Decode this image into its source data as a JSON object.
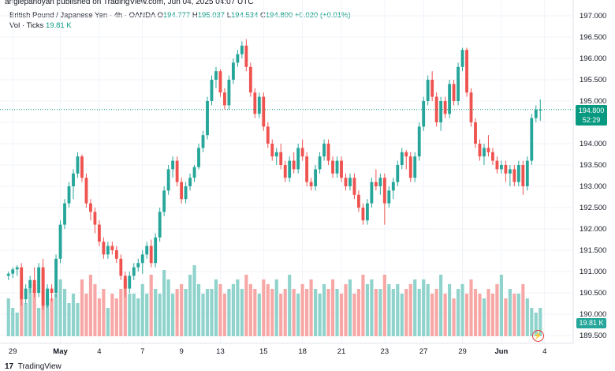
{
  "header": {
    "published": "angiepanoyan published on TradingView.com, Jun 04, 2025 04:07 UTC"
  },
  "legend": {
    "symbol": "British Pound / Japanese Yen · 4h · OANDA",
    "o_label": "O",
    "o_val": "194.777",
    "h_label": "H",
    "h_val": "195.037",
    "l_label": "L",
    "l_val": "194.534",
    "c_label": "C",
    "c_val": "194.800",
    "change": "+0.020 (+0.01%)",
    "vol_label": "Vol · Ticks",
    "vol_val": "19.81 K"
  },
  "price_tag": {
    "price": "194.800",
    "countdown": "52:29"
  },
  "vol_tag": "19.81 K",
  "footer": {
    "brand": "TradingView"
  },
  "colors": {
    "up": "#26a69a",
    "down": "#ef5350",
    "vol_up": "#8fd3cc",
    "vol_down": "#f7a8a6",
    "price_line": "#089981"
  },
  "chart_data": {
    "type": "candlestick",
    "title": "British Pound / Japanese Yen · 4h · OANDA",
    "ylim": [
      189.4,
      197.1
    ],
    "y_ticks": [
      "197.000",
      "196.500",
      "196.000",
      "195.500",
      "195.000",
      "194.500",
      "194.000",
      "193.500",
      "193.000",
      "192.500",
      "192.000",
      "191.500",
      "191.000",
      "190.500",
      "190.000",
      "189.500"
    ],
    "y_tick_values": [
      197.0,
      196.5,
      196.0,
      195.5,
      195.0,
      194.5,
      194.0,
      193.5,
      193.0,
      192.5,
      192.0,
      191.5,
      191.0,
      190.5,
      190.0,
      189.5
    ],
    "x_ticks": [
      "29",
      "May",
      "4",
      "7",
      "9",
      "13",
      "15",
      "18",
      "21",
      "23",
      "27",
      "29",
      "Jun",
      "4"
    ],
    "x_tick_index": [
      1,
      12,
      21,
      31,
      40,
      49,
      59,
      68,
      77,
      87,
      96,
      105,
      114,
      124
    ],
    "last_price": 194.8,
    "ohlc": [
      [
        190.9,
        191.0,
        190.8,
        190.95
      ],
      [
        190.95,
        191.1,
        190.85,
        191.05
      ],
      [
        191.05,
        191.15,
        190.9,
        191.1
      ],
      [
        191.1,
        191.2,
        190.2,
        190.35
      ],
      [
        190.35,
        190.7,
        190.25,
        190.6
      ],
      [
        190.6,
        190.9,
        190.5,
        190.8
      ],
      [
        190.8,
        191.1,
        190.4,
        190.5
      ],
      [
        190.5,
        191.2,
        190.4,
        191.1
      ],
      [
        191.1,
        191.3,
        190.1,
        190.2
      ],
      [
        190.2,
        190.7,
        190.15,
        190.6
      ],
      [
        190.6,
        190.7,
        190.3,
        190.5
      ],
      [
        190.5,
        191.4,
        190.4,
        191.3
      ],
      [
        191.3,
        192.2,
        191.2,
        192.1
      ],
      [
        192.1,
        192.7,
        192.0,
        192.6
      ],
      [
        192.6,
        193.1,
        192.5,
        193.0
      ],
      [
        193.0,
        193.4,
        192.7,
        193.3
      ],
      [
        193.3,
        193.8,
        193.2,
        193.7
      ],
      [
        193.7,
        193.75,
        193.1,
        193.2
      ],
      [
        193.2,
        193.3,
        192.5,
        192.6
      ],
      [
        192.6,
        192.7,
        192.2,
        192.4
      ],
      [
        192.4,
        192.5,
        191.9,
        192.1
      ],
      [
        192.1,
        192.2,
        191.6,
        191.7
      ],
      [
        191.7,
        191.8,
        191.3,
        191.4
      ],
      [
        191.4,
        191.7,
        191.3,
        191.6
      ],
      [
        191.6,
        191.7,
        191.4,
        191.5
      ],
      [
        191.5,
        191.6,
        191.2,
        191.3
      ],
      [
        191.3,
        191.4,
        190.8,
        190.9
      ],
      [
        190.9,
        191.0,
        190.4,
        190.6
      ],
      [
        190.6,
        191.0,
        190.5,
        190.9
      ],
      [
        190.9,
        191.2,
        190.8,
        191.1
      ],
      [
        191.1,
        191.3,
        191.0,
        191.2
      ],
      [
        191.2,
        191.5,
        190.95,
        191.4
      ],
      [
        191.4,
        191.7,
        191.3,
        191.6
      ],
      [
        191.6,
        191.75,
        191.1,
        191.2
      ],
      [
        191.2,
        191.9,
        191.1,
        191.8
      ],
      [
        191.8,
        192.5,
        191.7,
        192.4
      ],
      [
        192.4,
        193.0,
        192.3,
        192.9
      ],
      [
        192.9,
        193.5,
        192.8,
        193.4
      ],
      [
        193.4,
        193.7,
        193.2,
        193.6
      ],
      [
        193.6,
        193.7,
        193.0,
        193.1
      ],
      [
        193.1,
        193.2,
        192.6,
        192.7
      ],
      [
        192.7,
        193.1,
        192.6,
        193.0
      ],
      [
        193.0,
        193.3,
        192.9,
        193.2
      ],
      [
        193.2,
        193.5,
        193.1,
        193.45
      ],
      [
        193.45,
        194.0,
        193.4,
        193.9
      ],
      [
        193.9,
        194.3,
        193.8,
        194.2
      ],
      [
        194.2,
        195.1,
        194.1,
        195.0
      ],
      [
        195.0,
        195.6,
        194.9,
        195.5
      ],
      [
        195.5,
        195.8,
        195.3,
        195.7
      ],
      [
        195.7,
        195.75,
        195.1,
        195.2
      ],
      [
        195.2,
        195.3,
        194.8,
        194.9
      ],
      [
        194.9,
        195.6,
        194.8,
        195.5
      ],
      [
        195.5,
        196.0,
        195.4,
        195.9
      ],
      [
        195.9,
        196.2,
        195.8,
        196.1
      ],
      [
        196.1,
        196.4,
        196.0,
        196.3
      ],
      [
        196.3,
        196.45,
        195.7,
        195.8
      ],
      [
        195.8,
        195.9,
        195.1,
        195.2
      ],
      [
        195.2,
        195.3,
        194.6,
        194.7
      ],
      [
        194.7,
        195.2,
        194.6,
        195.1
      ],
      [
        195.1,
        195.2,
        194.3,
        194.4
      ],
      [
        194.4,
        194.5,
        193.9,
        194.0
      ],
      [
        194.0,
        194.1,
        193.6,
        193.7
      ],
      [
        193.7,
        193.9,
        193.5,
        193.8
      ],
      [
        193.8,
        194.0,
        193.4,
        193.5
      ],
      [
        193.5,
        193.6,
        193.1,
        193.2
      ],
      [
        193.2,
        193.7,
        193.1,
        193.6
      ],
      [
        193.6,
        193.8,
        193.3,
        193.4
      ],
      [
        193.4,
        194.0,
        193.3,
        193.9
      ],
      [
        193.9,
        194.1,
        193.6,
        193.7
      ],
      [
        193.7,
        193.8,
        193.0,
        193.1
      ],
      [
        193.1,
        193.2,
        192.9,
        193.0
      ],
      [
        193.0,
        193.5,
        192.9,
        193.4
      ],
      [
        193.4,
        193.8,
        193.3,
        193.7
      ],
      [
        193.7,
        194.1,
        193.6,
        194.0
      ],
      [
        194.0,
        194.1,
        193.5,
        193.6
      ],
      [
        193.6,
        193.7,
        193.2,
        193.3
      ],
      [
        193.3,
        193.7,
        193.2,
        193.6
      ],
      [
        193.6,
        193.7,
        193.1,
        193.2
      ],
      [
        193.2,
        193.3,
        192.9,
        193.0
      ],
      [
        193.0,
        193.3,
        192.9,
        193.2
      ],
      [
        193.2,
        193.3,
        192.7,
        192.8
      ],
      [
        192.8,
        192.9,
        192.4,
        192.5
      ],
      [
        192.5,
        192.6,
        192.1,
        192.2
      ],
      [
        192.2,
        192.7,
        192.1,
        192.6
      ],
      [
        192.6,
        193.2,
        192.5,
        193.1
      ],
      [
        193.1,
        193.4,
        192.9,
        193.0
      ],
      [
        193.0,
        193.3,
        192.8,
        193.2
      ],
      [
        193.2,
        193.3,
        192.1,
        192.6
      ],
      [
        192.6,
        193.0,
        192.5,
        192.9
      ],
      [
        192.9,
        193.2,
        192.7,
        193.1
      ],
      [
        193.1,
        193.6,
        193.0,
        193.5
      ],
      [
        193.5,
        193.9,
        193.4,
        193.8
      ],
      [
        193.8,
        193.85,
        193.4,
        193.7
      ],
      [
        193.7,
        193.8,
        193.1,
        193.2
      ],
      [
        193.2,
        193.8,
        193.1,
        193.7
      ],
      [
        193.7,
        194.5,
        193.6,
        194.4
      ],
      [
        194.4,
        195.1,
        194.3,
        195.0
      ],
      [
        195.0,
        195.6,
        194.9,
        195.5
      ],
      [
        195.5,
        195.7,
        195.0,
        195.1
      ],
      [
        195.1,
        195.2,
        194.4,
        194.5
      ],
      [
        194.5,
        195.1,
        194.3,
        195.0
      ],
      [
        195.0,
        195.1,
        194.6,
        194.7
      ],
      [
        194.7,
        195.5,
        194.6,
        195.4
      ],
      [
        195.4,
        195.5,
        194.9,
        195.0
      ],
      [
        195.0,
        195.9,
        194.9,
        195.8
      ],
      [
        195.8,
        196.25,
        195.7,
        196.2
      ],
      [
        196.2,
        196.25,
        195.1,
        195.2
      ],
      [
        195.2,
        195.3,
        194.4,
        194.5
      ],
      [
        194.5,
        194.6,
        193.9,
        194.0
      ],
      [
        194.0,
        194.1,
        193.6,
        193.7
      ],
      [
        193.7,
        194.0,
        193.5,
        193.9
      ],
      [
        193.9,
        194.2,
        193.7,
        193.8
      ],
      [
        193.8,
        193.9,
        193.5,
        193.6
      ],
      [
        193.6,
        193.7,
        193.3,
        193.4
      ],
      [
        193.4,
        193.6,
        193.3,
        193.5
      ],
      [
        193.5,
        193.6,
        193.1,
        193.3
      ],
      [
        193.3,
        193.5,
        193.0,
        193.4
      ],
      [
        193.4,
        193.5,
        193.0,
        193.1
      ],
      [
        193.1,
        193.6,
        193.0,
        193.5
      ],
      [
        193.5,
        193.6,
        192.8,
        193.0
      ],
      [
        193.0,
        193.7,
        192.9,
        193.6
      ],
      [
        193.6,
        194.7,
        193.5,
        194.6
      ],
      [
        194.6,
        194.9,
        194.5,
        194.8
      ],
      [
        194.777,
        195.037,
        194.534,
        194.8
      ]
    ],
    "volume": [
      8,
      6,
      5,
      12,
      7,
      10,
      11,
      6,
      14,
      9,
      8,
      9,
      12,
      10,
      7,
      9,
      7,
      12,
      9,
      13,
      11,
      8,
      10,
      6,
      9,
      8,
      10,
      12,
      9,
      9,
      8,
      11,
      9,
      13,
      10,
      9,
      14,
      12,
      9,
      10,
      11,
      10,
      13,
      15,
      11,
      9,
      10,
      10,
      12,
      11,
      9,
      10,
      11,
      12,
      10,
      13,
      11,
      10,
      9,
      12,
      11,
      10,
      12,
      9,
      10,
      13,
      10,
      9,
      11,
      10,
      12,
      10,
      9,
      11,
      10,
      12,
      10,
      9,
      11,
      12,
      9,
      10,
      13,
      11,
      12,
      10,
      10,
      13,
      11,
      10,
      11,
      9,
      10,
      11,
      12,
      10,
      12,
      11,
      9,
      10,
      13,
      9,
      11,
      8,
      10,
      11,
      9,
      12,
      10,
      9,
      8,
      10,
      9,
      11,
      13,
      8,
      10,
      9,
      9,
      11,
      8,
      6,
      5,
      6
    ]
  }
}
